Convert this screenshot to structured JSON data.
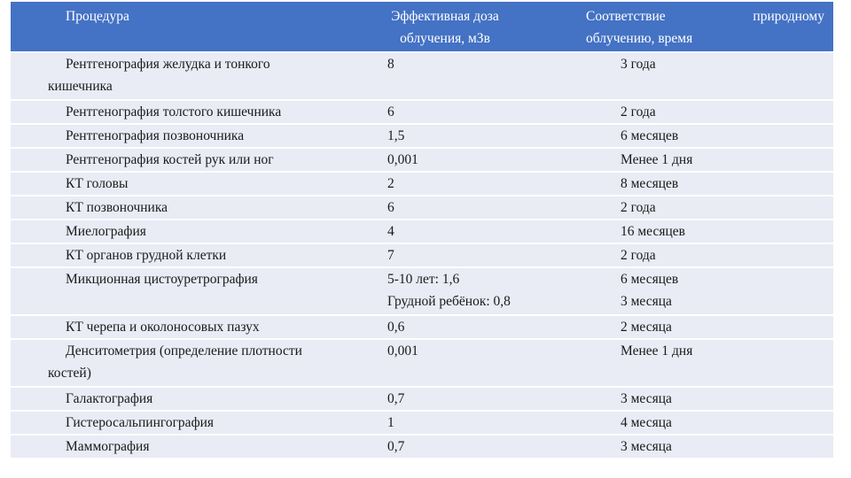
{
  "table": {
    "headers": {
      "procedure": "Процедура",
      "dose_line1": "Эффективная доза",
      "dose_line2": "облучения,  мЗв",
      "natural_line1": "Соответствие   природному",
      "natural_line2": "облучению,  время"
    },
    "rows": [
      {
        "procedure": "Рентгенография желудка и тонкого кишечника",
        "dose": "8",
        "natural": "3 года"
      },
      {
        "procedure": "Рентгенография толстого кишечника",
        "dose": "6",
        "natural": "2 года"
      },
      {
        "procedure": "Рентгенография позвоночника",
        "dose": "1,5",
        "natural": "6 месяцев"
      },
      {
        "procedure": "Рентгенография костей рук или ног",
        "dose": "0,001",
        "natural": "Менее 1 дня"
      },
      {
        "procedure": "КТ головы",
        "dose": "2",
        "natural": "8 месяцев"
      },
      {
        "procedure": "КТ позвоночника",
        "dose": "6",
        "natural": "2 года"
      },
      {
        "procedure": "Миелография",
        "dose": "4",
        "natural": "16 месяцев"
      },
      {
        "procedure": "КТ органов грудной клетки",
        "dose": "7",
        "natural": "2 года"
      },
      {
        "procedure": "Микционная цистоуретрография",
        "dose_line1": "5-10 лет: 1,6",
        "dose_line2": "Грудной ребёнок: 0,8",
        "natural_line1": "6 месяцев",
        "natural_line2": "3 месяца"
      },
      {
        "procedure": "КТ черепа и околоносовых пазух",
        "dose": "0,6",
        "natural": "2 месяца"
      },
      {
        "procedure": "Денситометрия (определение плотности костей)",
        "dose": "0,001",
        "natural": "Менее 1 дня"
      },
      {
        "procedure": "Галактография",
        "dose": "0,7",
        "natural": "3 месяца"
      },
      {
        "procedure": "Гистеросальпингография",
        "dose": "1",
        "natural": "4 месяца"
      },
      {
        "procedure": "Маммография",
        "dose": "0,7",
        "natural": "3 месяца"
      }
    ]
  },
  "colors": {
    "header_bg": "#4472c4",
    "row_bg": "#e9ebf5",
    "header_text": "#ffffff",
    "body_text": "#1a1a1a"
  }
}
